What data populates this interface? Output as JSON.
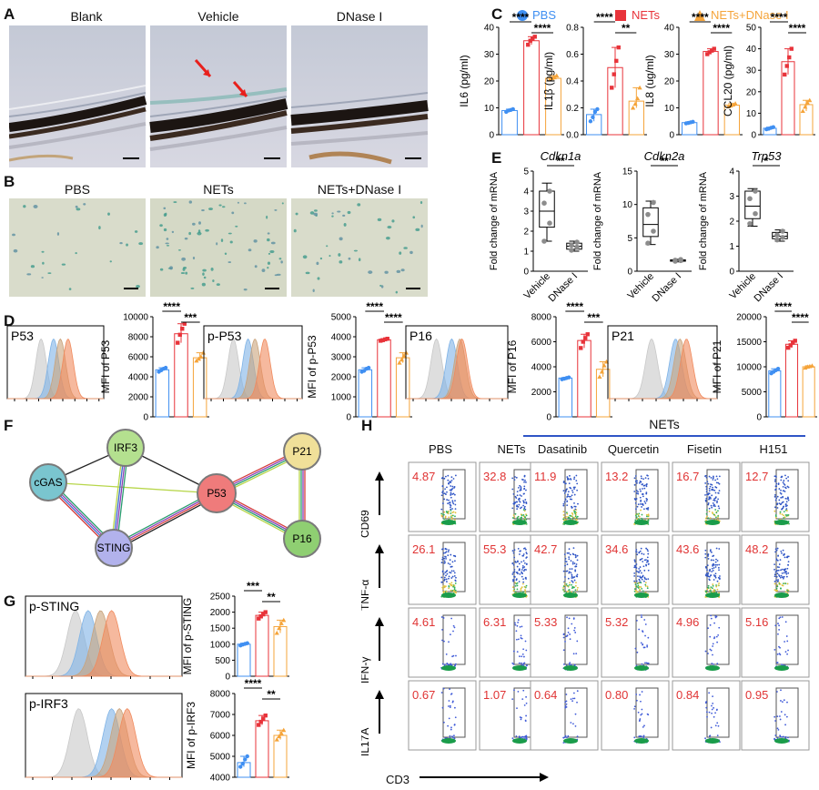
{
  "panels": {
    "A": "A",
    "B": "B",
    "C": "C",
    "D": "D",
    "E": "E",
    "F": "F",
    "G": "G",
    "H": "H"
  },
  "panel_a": {
    "images": [
      "Blank",
      "Vehicle",
      "DNase I"
    ]
  },
  "panel_b": {
    "images": [
      "PBS",
      "NETs",
      "NETs+DNase I"
    ]
  },
  "legend_c": [
    {
      "label": "PBS",
      "color": "#3f8ff2",
      "shape": "circle"
    },
    {
      "label": "NETs",
      "color": "#e8333a",
      "shape": "square"
    },
    {
      "label": "NETs+DNase I",
      "color": "#f5a43a",
      "shape": "triangle"
    }
  ],
  "colors": {
    "pbs": "#3f8ff2",
    "nets": "#e8333a",
    "dnase": "#f5a43a"
  },
  "chart_data": [
    {
      "panel": "C",
      "type": "bar",
      "ylabel": "IL6 (pg/ml)",
      "categories": [
        "PBS",
        "NETs",
        "NETs+DNase I"
      ],
      "values": [
        9,
        35,
        21
      ],
      "points": [
        [
          8.5,
          9,
          9.2,
          9.5
        ],
        [
          33.5,
          35,
          35.8,
          36.5
        ],
        [
          20.5,
          21,
          21.3,
          22
        ]
      ],
      "ylim": [
        0,
        40
      ],
      "yticks": [
        "0",
        "10",
        "20",
        "30",
        "40"
      ],
      "sig": [
        {
          "from": 0,
          "to": 1,
          "label": "****",
          "level": 0
        },
        {
          "from": 1,
          "to": 2,
          "label": "****",
          "level": 1
        }
      ]
    },
    {
      "panel": "C",
      "type": "bar",
      "ylabel": "IL1β (pg/ml)",
      "categories": [
        "PBS",
        "NETs",
        "NETs+DNase I"
      ],
      "values": [
        0.15,
        0.5,
        0.25
      ],
      "points": [
        [
          0.1,
          0.13,
          0.17,
          0.19
        ],
        [
          0.35,
          0.45,
          0.55,
          0.65
        ],
        [
          0.2,
          0.23,
          0.27,
          0.35
        ]
      ],
      "ylim": [
        0,
        0.8
      ],
      "yticks": [
        "0.0",
        "0.2",
        "0.4",
        "0.6",
        "0.8"
      ],
      "sig": [
        {
          "from": 0,
          "to": 1,
          "label": "****",
          "level": 0
        },
        {
          "from": 1,
          "to": 2,
          "label": "**",
          "level": 1
        }
      ]
    },
    {
      "panel": "C",
      "type": "bar",
      "ylabel": "IL8 (ug/ml)",
      "categories": [
        "PBS",
        "NETs",
        "NETs+DNase I"
      ],
      "values": [
        4.5,
        31,
        11
      ],
      "points": [
        [
          4.2,
          4.4,
          4.6,
          4.8
        ],
        [
          30,
          30.7,
          31.3,
          32
        ],
        [
          10.5,
          10.8,
          11.2,
          11.6
        ]
      ],
      "ylim": [
        0,
        40
      ],
      "yticks": [
        "0",
        "10",
        "20",
        "30",
        "40"
      ],
      "sig": [
        {
          "from": 0,
          "to": 1,
          "label": "****",
          "level": 0
        },
        {
          "from": 1,
          "to": 2,
          "label": "****",
          "level": 1
        }
      ]
    },
    {
      "panel": "C",
      "type": "bar",
      "ylabel": "CCL20 (pg/ml)",
      "categories": [
        "PBS",
        "NETs",
        "NETs+DNase I"
      ],
      "values": [
        3,
        34,
        14
      ],
      "points": [
        [
          2.5,
          2.8,
          3.2,
          3.5
        ],
        [
          28,
          32,
          36,
          40
        ],
        [
          11,
          13,
          15,
          16
        ]
      ],
      "ylim": [
        0,
        50
      ],
      "yticks": [
        "0",
        "10",
        "20",
        "30",
        "40",
        "50"
      ],
      "sig": [
        {
          "from": 0,
          "to": 1,
          "label": "****",
          "level": 0
        },
        {
          "from": 1,
          "to": 2,
          "label": "****",
          "level": 1
        }
      ]
    },
    {
      "panel": "E",
      "type": "box",
      "title": "Cdkn1a",
      "ylabel": "Fold change of mRNA",
      "categories": [
        "Vehicle",
        "DNase I"
      ],
      "boxes": [
        {
          "min": 1.5,
          "q1": 2.2,
          "median": 3,
          "q3": 4,
          "max": 4.4
        },
        {
          "min": 1,
          "q1": 1.1,
          "median": 1.25,
          "q3": 1.4,
          "max": 1.5
        }
      ],
      "points": [
        [
          1.5,
          2.4,
          3.4,
          4.0
        ],
        [
          1.05,
          1.2,
          1.3,
          1.45
        ]
      ],
      "ylim": [
        0,
        5
      ],
      "yticks": [
        "0",
        "1",
        "2",
        "3",
        "4",
        "5"
      ],
      "sig": [
        {
          "from": 0,
          "to": 1,
          "label": "**",
          "level": 0
        }
      ]
    },
    {
      "panel": "E",
      "type": "box",
      "title": "Cdkn2a",
      "ylabel": "Fold change of mRNA",
      "categories": [
        "Vehicle",
        "DNase I"
      ],
      "boxes": [
        {
          "min": 4,
          "q1": 5.2,
          "median": 7,
          "q3": 9.5,
          "max": 10.5
        },
        {
          "min": 1.4,
          "q1": 1.5,
          "median": 1.6,
          "q3": 1.7,
          "max": 1.8
        }
      ],
      "points": [
        [
          4.2,
          6,
          8.5,
          10.3
        ],
        [
          1.5,
          1.6,
          1.65,
          1.75
        ]
      ],
      "ylim": [
        0,
        15
      ],
      "yticks": [
        "0",
        "5",
        "10",
        "15"
      ],
      "sig": [
        {
          "from": 0,
          "to": 1,
          "label": "**",
          "level": 0
        }
      ]
    },
    {
      "panel": "E",
      "type": "box",
      "title": "Trp53",
      "ylabel": "Fold change of mRNA",
      "categories": [
        "Vehicle",
        "DNase I"
      ],
      "boxes": [
        {
          "min": 1.8,
          "q1": 2.1,
          "median": 2.6,
          "q3": 3.2,
          "max": 3.3
        },
        {
          "min": 1.2,
          "q1": 1.3,
          "median": 1.4,
          "q3": 1.55,
          "max": 1.65
        }
      ],
      "points": [
        [
          1.9,
          2.3,
          2.9,
          3.2
        ],
        [
          1.25,
          1.35,
          1.45,
          1.6
        ]
      ],
      "ylim": [
        0,
        4
      ],
      "yticks": [
        "0",
        "1",
        "2",
        "3",
        "4"
      ],
      "sig": [
        {
          "from": 0,
          "to": 1,
          "label": "*",
          "level": 0
        }
      ]
    },
    {
      "panel": "D",
      "type": "bar",
      "ylabel": "MFI of P53",
      "categories": [
        "PBS",
        "NETs",
        "NETs+DNase I"
      ],
      "values": [
        4700,
        8300,
        5900
      ],
      "points": [
        [
          4500,
          4650,
          4800,
          4900
        ],
        [
          7400,
          8200,
          8800,
          9300
        ],
        [
          5600,
          5800,
          6000,
          6400
        ]
      ],
      "ylim": [
        0,
        10000
      ],
      "yticks": [
        "0",
        "2000",
        "4000",
        "6000",
        "8000",
        "10000"
      ],
      "sig": [
        {
          "from": 0,
          "to": 1,
          "label": "****",
          "level": 0
        },
        {
          "from": 1,
          "to": 2,
          "label": "***",
          "level": 1
        }
      ]
    },
    {
      "panel": "D",
      "type": "bar",
      "ylabel": "MFI of p-P53",
      "categories": [
        "PBS",
        "NETs",
        "NETs+DNase I"
      ],
      "values": [
        2350,
        3850,
        2950
      ],
      "points": [
        [
          2250,
          2300,
          2400,
          2450
        ],
        [
          3800,
          3830,
          3870,
          3900
        ],
        [
          2700,
          2850,
          3050,
          3200
        ]
      ],
      "ylim": [
        0,
        5000
      ],
      "yticks": [
        "0",
        "1000",
        "2000",
        "3000",
        "4000",
        "5000"
      ],
      "sig": [
        {
          "from": 0,
          "to": 1,
          "label": "****",
          "level": 0
        },
        {
          "from": 1,
          "to": 2,
          "label": "****",
          "level": 1
        }
      ]
    },
    {
      "panel": "D",
      "type": "bar",
      "ylabel": "MFI of P16",
      "categories": [
        "PBS",
        "NETs",
        "NETs+DNase I"
      ],
      "values": [
        3100,
        6100,
        3800
      ],
      "points": [
        [
          3000,
          3050,
          3100,
          3150
        ],
        [
          5500,
          6000,
          6300,
          6600
        ],
        [
          3200,
          3600,
          4100,
          4400
        ]
      ],
      "ylim": [
        0,
        8000
      ],
      "yticks": [
        "0",
        "2000",
        "4000",
        "6000",
        "8000"
      ],
      "sig": [
        {
          "from": 0,
          "to": 1,
          "label": "****",
          "level": 0
        },
        {
          "from": 1,
          "to": 2,
          "label": "***",
          "level": 1
        }
      ]
    },
    {
      "panel": "D",
      "type": "bar",
      "ylabel": "MFI of P21",
      "categories": [
        "PBS",
        "NETs",
        "NETs+DNase I"
      ],
      "values": [
        9200,
        14500,
        10000
      ],
      "points": [
        [
          8700,
          9000,
          9300,
          9600
        ],
        [
          13800,
          14300,
          14800,
          15200
        ],
        [
          9800,
          10000,
          10100,
          10200
        ]
      ],
      "ylim": [
        0,
        20000
      ],
      "yticks": [
        "0",
        "5000",
        "10000",
        "15000",
        "20000"
      ],
      "sig": [
        {
          "from": 0,
          "to": 1,
          "label": "****",
          "level": 0
        },
        {
          "from": 1,
          "to": 2,
          "label": "****",
          "level": 1
        }
      ]
    },
    {
      "panel": "G",
      "type": "bar",
      "ylabel": "MFI of p-STING",
      "categories": [
        "PBS",
        "NETs",
        "NETs+DNase I"
      ],
      "values": [
        1000,
        1900,
        1550
      ],
      "points": [
        [
          960,
          990,
          1010,
          1030
        ],
        [
          1800,
          1870,
          1930,
          2000
        ],
        [
          1350,
          1500,
          1650,
          1750
        ]
      ],
      "ylim": [
        0,
        2500
      ],
      "yticks": [
        "0",
        "500",
        "1000",
        "1500",
        "2000",
        "2500"
      ],
      "sig": [
        {
          "from": 0,
          "to": 1,
          "label": "***",
          "level": 0
        },
        {
          "from": 1,
          "to": 2,
          "label": "**",
          "level": 1
        }
      ]
    },
    {
      "panel": "G",
      "type": "bar",
      "ylabel": "MFI of p-IRF3",
      "categories": [
        "PBS",
        "NETs",
        "NETs+DNase I"
      ],
      "values": [
        4700,
        6700,
        6000
      ],
      "points": [
        [
          4500,
          4650,
          4850,
          5000
        ],
        [
          6500,
          6650,
          6800,
          6950
        ],
        [
          5800,
          5950,
          6100,
          6250
        ]
      ],
      "ylim": [
        4000,
        8000
      ],
      "yticks": [
        "4000",
        "5000",
        "6000",
        "7000",
        "8000"
      ],
      "sig": [
        {
          "from": 0,
          "to": 1,
          "label": "****",
          "level": 0
        },
        {
          "from": 1,
          "to": 2,
          "label": "**",
          "level": 1
        }
      ]
    }
  ],
  "histograms": {
    "D": [
      {
        "label": "P53"
      },
      {
        "label": "p-P53"
      },
      {
        "label": "P16"
      },
      {
        "label": "P21"
      }
    ],
    "G": [
      {
        "label": "p-STING"
      },
      {
        "label": "p-IRF3"
      }
    ],
    "colors": [
      "#c8c8c8",
      "#7fb3e6",
      "#c9a37c",
      "#f08a5d"
    ]
  },
  "network": {
    "nodes": [
      {
        "id": "cGAS",
        "color": "#7ac5cf"
      },
      {
        "id": "IRF3",
        "color": "#b4e08f"
      },
      {
        "id": "P53",
        "color": "#ef7b7b"
      },
      {
        "id": "STING",
        "color": "#b2b2ec"
      },
      {
        "id": "P21",
        "color": "#f0e099"
      },
      {
        "id": "P16",
        "color": "#8fcf72"
      }
    ]
  },
  "panel_h": {
    "nets_header": "NETs",
    "columns": [
      "PBS",
      "NETs",
      "Dasatinib",
      "Quercetin",
      "Fisetin",
      "H151"
    ],
    "rows": [
      {
        "label": "CD69",
        "values": [
          "4.87",
          "32.8",
          "11.9",
          "13.2",
          "16.7",
          "12.7"
        ]
      },
      {
        "label": "TNF-α",
        "values": [
          "26.1",
          "55.3",
          "42.7",
          "34.6",
          "43.6",
          "48.2"
        ]
      },
      {
        "label": "IFN-γ",
        "values": [
          "4.61",
          "6.31",
          "5.33",
          "5.32",
          "4.96",
          "5.16"
        ]
      },
      {
        "label": "IL17A",
        "values": [
          "0.67",
          "1.07",
          "0.64",
          "0.80",
          "0.84",
          "0.95"
        ]
      }
    ],
    "xlabel": "CD3"
  }
}
